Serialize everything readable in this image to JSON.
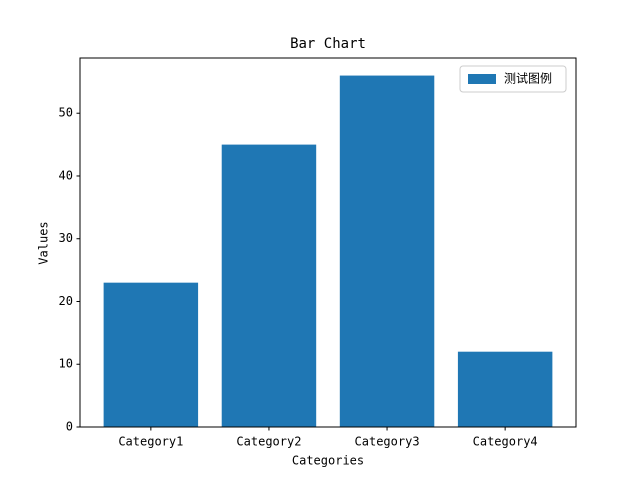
{
  "chart_data": {
    "type": "bar",
    "title": "Bar Chart",
    "x_label": "Categories",
    "y_label": "Values",
    "categories": [
      "Category1",
      "Category2",
      "Category3",
      "Category4"
    ],
    "series": [
      {
        "name": "测试图例",
        "color": "#1f77b4",
        "values": [
          23,
          45,
          56,
          12
        ]
      }
    ],
    "ylim": [
      0,
      58.8
    ],
    "yticks": [
      0,
      10,
      20,
      30,
      40,
      50
    ],
    "grid": false,
    "legend": "upper right"
  }
}
